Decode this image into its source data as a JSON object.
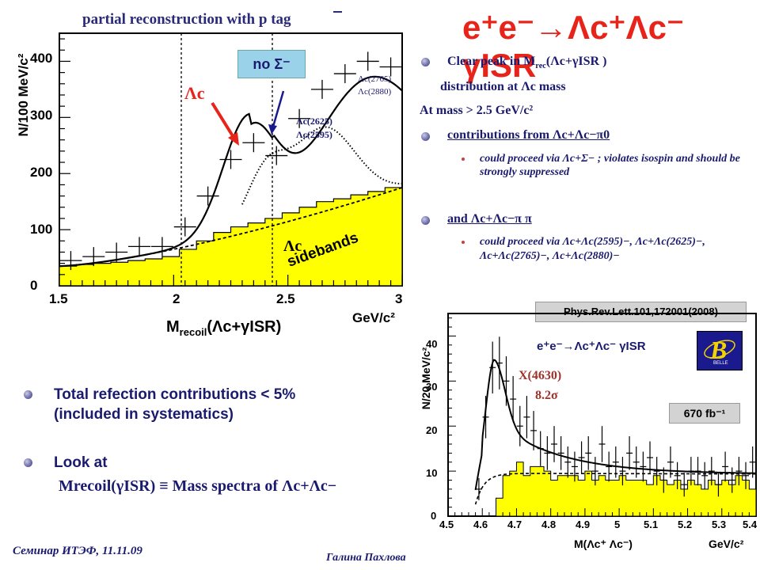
{
  "left_plot": {
    "title": "partial reconstruction with p tag",
    "title_bar_char": "p",
    "ylabel": "N/100 MeV/c²",
    "xlabel_main": "M",
    "xlabel_sub": "recoil",
    "xlabel_rest": "(Λc+γISR)",
    "xunit": "GeV/c²",
    "yticks": [
      "0",
      "100",
      "200",
      "300",
      "400"
    ],
    "xticks": [
      "1.5",
      "2",
      "2.5",
      "3"
    ],
    "lc_label": "Λc",
    "no_sigma_label": "no Σ⁻",
    "ann_2625": "Λc(2625)",
    "ann_2595": "Λc(2595)",
    "ann_2765": "Λc(2765)",
    "ann_2880": "Λc(2880)",
    "sideband_1": "Λc",
    "sideband_2": "sidebands"
  },
  "chart_data": [
    {
      "type": "scatter",
      "title": "partial reconstruction with p tag",
      "xlabel": "Mrecoil(Λc+γISR) GeV/c²",
      "ylabel": "N/100 MeV/c²",
      "xlim": [
        1.5,
        3.0
      ],
      "ylim": [
        0,
        450
      ],
      "series": [
        {
          "x": [
            1.55,
            1.65,
            1.75,
            1.85,
            1.95,
            2.05,
            2.15,
            2.25,
            2.35,
            2.45,
            2.55,
            2.65,
            2.75,
            2.85,
            2.95
          ],
          "values": [
            45,
            52,
            60,
            70,
            70,
            105,
            160,
            225,
            255,
            232,
            298,
            350,
            378,
            400,
            390
          ]
        }
      ]
    },
    {
      "type": "scatter",
      "title": "e⁺e⁻→Λc⁺Λc⁻ γISR",
      "xlabel": "M(Λc⁺Λc⁻) GeV/c²",
      "ylabel": "N/20 MeV/c²",
      "xlim": [
        4.5,
        5.4
      ],
      "ylim": [
        0,
        45
      ],
      "series": [
        {
          "x": [
            4.59,
            4.61,
            4.63,
            4.65,
            4.67,
            4.69,
            4.71,
            4.73,
            4.75,
            4.77,
            4.79,
            4.81,
            4.83,
            4.85,
            4.87,
            4.89,
            4.91,
            4.93,
            4.95,
            4.97,
            4.99,
            5.01,
            5.03,
            5.05,
            5.07,
            5.09,
            5.11,
            5.13,
            5.15,
            5.17,
            5.19,
            5.21,
            5.23,
            5.25,
            5.27,
            5.29,
            5.31,
            5.33,
            5.35,
            5.37,
            5.39
          ],
          "values": [
            6,
            22,
            33,
            34,
            30,
            26,
            20,
            22,
            19,
            15,
            14,
            16,
            14,
            12,
            11,
            13,
            14,
            10,
            16,
            11,
            12,
            10,
            14,
            12,
            11,
            13,
            10,
            8,
            12,
            9,
            7,
            10,
            10,
            9,
            10,
            7,
            11,
            8,
            10,
            9,
            12
          ]
        }
      ]
    }
  ],
  "right": {
    "title_main": "e⁺e⁻→Λc⁺Λc⁻ γISR",
    "bullet1_a": "Clear peak in M",
    "bullet1_sub": "rec",
    "bullet1_b": "(Λc+γISR )",
    "bullet1_c": "distribution at Λc mass",
    "at_mass": "At mass > 2.5 GeV/c²",
    "contrib": "contributions from  Λc+Λc−π0",
    "sub1": "could proceed via Λc+Σ− ; violates isospin and should be strongly suppressed",
    "and_line": "and Λc+Λc−π π",
    "sub2": "could proceed via Λc+Λc(2595)−, Λc+Λc(2625)−, Λc+Λc(2765)−, Λc+Λc(2880)−"
  },
  "bottom_left": {
    "b1_a": "Total refection contributions < 5%",
    "b1_b": "(included in systematics)",
    "b2_a": "Look at",
    "b2_b": "Mrecoil(γISR) ≡ Mass spectra of Λc+Λc−"
  },
  "right_plot": {
    "reference": "Phys.Rev.Lett.101,172001(2008)",
    "reaction": "e⁺e⁻→Λc⁺Λc⁻ γISR",
    "peak_label": "X(4630)",
    "significance": "8.2σ",
    "lumi": "670 fb⁻¹",
    "ylabel": "N/20 MeV/c²",
    "xlabel": "M(Λc⁺ Λc⁻)",
    "xunit": "GeV/c²",
    "yticks": [
      "0",
      "10",
      "20",
      "30",
      "40"
    ],
    "xticks": [
      "4.5",
      "4.6",
      "4.7",
      "4.8",
      "4.9",
      "5",
      "5.1",
      "5.2",
      "5.3",
      "5.4"
    ],
    "logo_text": "BELLE"
  },
  "footer": {
    "seminar": "Семинар ИТЭФ, 11.11.09",
    "author": "Галина Пахлова"
  }
}
